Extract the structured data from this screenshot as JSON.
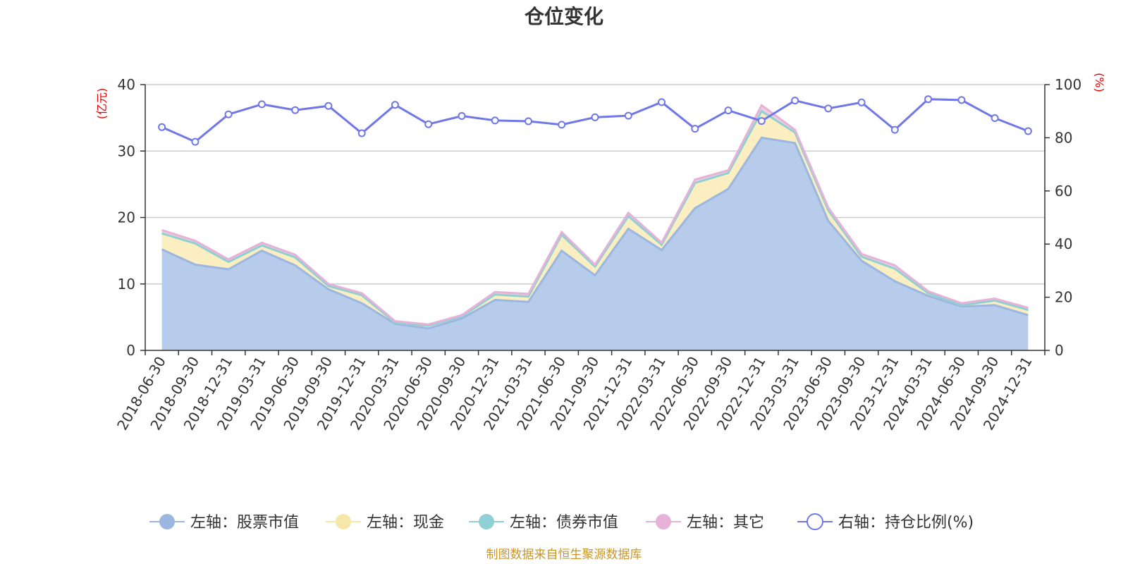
{
  "chart_data": {
    "type": "area",
    "title": "仓位变化",
    "left_axis_unit": "(亿元)",
    "right_axis_unit": "(%)",
    "left_ylim": [
      0,
      40
    ],
    "right_ylim": [
      0,
      100
    ],
    "left_ticks": [
      "0",
      "10",
      "20",
      "30",
      "40"
    ],
    "right_ticks": [
      "0",
      "20",
      "40",
      "60",
      "80",
      "100"
    ],
    "grid": true,
    "legend_position": "bottom",
    "categories": [
      "2018-06-30",
      "2018-09-30",
      "2018-12-31",
      "2019-03-31",
      "2019-06-30",
      "2019-09-30",
      "2019-12-31",
      "2020-03-31",
      "2020-06-30",
      "2020-09-30",
      "2020-12-31",
      "2021-03-31",
      "2021-06-30",
      "2021-09-30",
      "2021-12-31",
      "2022-03-31",
      "2022-06-30",
      "2022-09-30",
      "2022-12-31",
      "2023-03-31",
      "2023-06-30",
      "2023-09-30",
      "2023-12-31",
      "2024-03-31",
      "2024-06-30",
      "2024-09-30",
      "2024-12-31"
    ],
    "series": [
      {
        "name": "左轴：股票市值",
        "axis": "left",
        "color": "#9bb6e0",
        "fill": "#b7ccea",
        "values": [
          15.2,
          12.9,
          12.2,
          15.0,
          12.8,
          9.2,
          7.1,
          4.0,
          3.3,
          4.8,
          7.6,
          7.3,
          15.0,
          11.3,
          18.3,
          15.1,
          21.4,
          24.3,
          32.0,
          31.2,
          19.5,
          13.5,
          10.4,
          8.2,
          6.6,
          6.8,
          5.3
        ]
      },
      {
        "name": "左轴：现金",
        "axis": "left",
        "color": "#f6e6a8",
        "fill": "#fbeec0",
        "values": [
          2.4,
          3.2,
          1.1,
          0.8,
          1.2,
          0.5,
          1.2,
          0.2,
          0.4,
          0.3,
          0.8,
          0.8,
          2.4,
          1.3,
          1.9,
          0.8,
          3.8,
          2.4,
          4.0,
          1.6,
          1.6,
          0.6,
          1.9,
          0.4,
          0.2,
          0.7,
          0.8
        ]
      },
      {
        "name": "左轴：债券市值",
        "axis": "left",
        "color": "#8ed0d3",
        "fill": "#b4e0e2",
        "values": [
          0,
          0,
          0,
          0,
          0,
          0,
          0,
          0,
          0,
          0,
          0,
          0,
          0,
          0,
          0,
          0,
          0,
          0,
          0,
          0,
          0,
          0,
          0,
          0,
          0,
          0,
          0
        ]
      },
      {
        "name": "左轴：其它",
        "axis": "left",
        "color": "#e6b2d8",
        "fill": "#f0cfe6",
        "values": [
          0.5,
          0.4,
          0.4,
          0.4,
          0.4,
          0.3,
          0.3,
          0.2,
          0.2,
          0.2,
          0.4,
          0.4,
          0.4,
          0.3,
          0.5,
          0.3,
          0.5,
          0.4,
          0.9,
          0.4,
          0.4,
          0.4,
          0.5,
          0.3,
          0.3,
          0.3,
          0.3
        ]
      },
      {
        "name": "右轴：持仓比例(%)",
        "axis": "right",
        "color": "#7077e6",
        "values": [
          84.0,
          78.5,
          88.8,
          92.6,
          90.4,
          92.0,
          81.7,
          92.4,
          85.1,
          88.2,
          86.5,
          86.2,
          84.9,
          87.7,
          88.3,
          93.4,
          83.4,
          90.3,
          86.3,
          94.0,
          91.0,
          93.3,
          83.0,
          94.5,
          94.2,
          87.4,
          82.5
        ]
      }
    ],
    "source_note": "制图数据来自恒生聚源数据库"
  }
}
